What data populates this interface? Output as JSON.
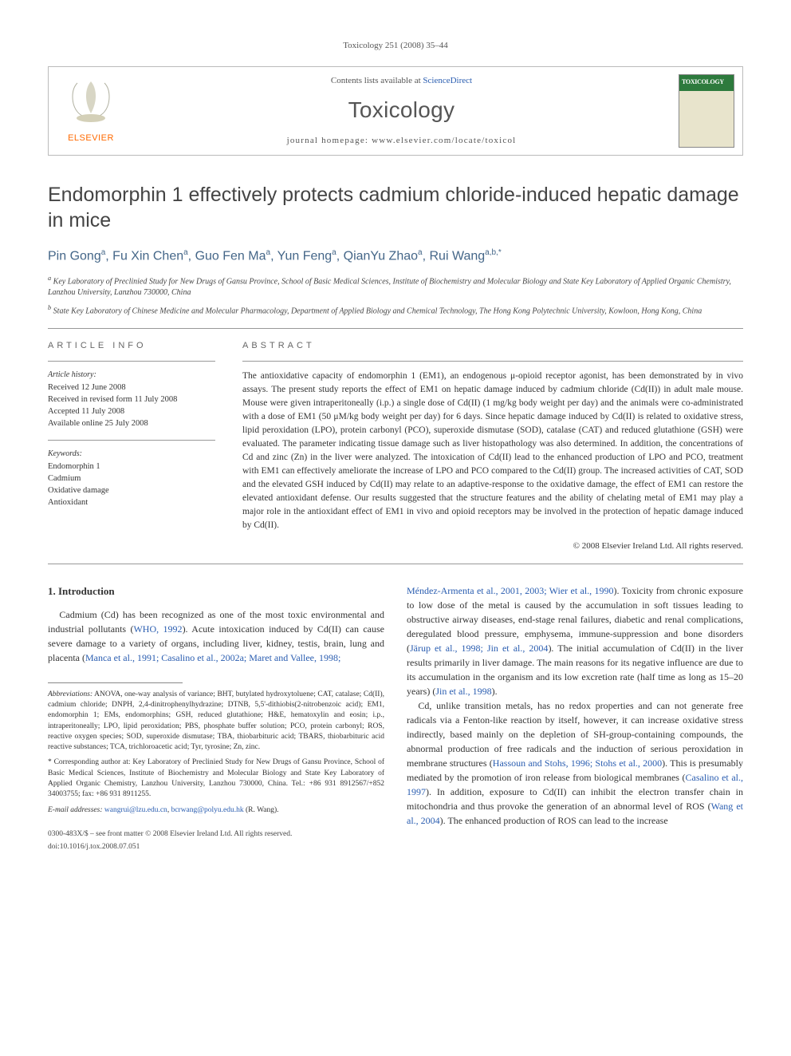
{
  "citation": "Toxicology 251 (2008) 35–44",
  "header": {
    "contents_prefix": "Contents lists available at ",
    "contents_link": "ScienceDirect",
    "journal": "Toxicology",
    "homepage_label": "journal homepage: ",
    "homepage_url": "www.elsevier.com/locate/toxicol",
    "cover_label": "TOXICOLOGY",
    "publisher": "ELSEVIER"
  },
  "title": "Endomorphin 1 effectively protects cadmium chloride-induced hepatic damage in mice",
  "authors_html": "Pin Gong<sup>a</sup>, Fu Xin Chen<sup>a</sup>, Guo Fen Ma<sup>a</sup>, Yun Feng<sup>a</sup>, QianYu Zhao<sup>a</sup>, Rui Wang<sup>a,b,*</sup>",
  "affiliations": {
    "a": "Key Laboratory of Preclinied Study for New Drugs of Gansu Province, School of Basic Medical Sciences, Institute of Biochemistry and Molecular Biology and State Key Laboratory of Applied Organic Chemistry, Lanzhou University, Lanzhou 730000, China",
    "b": "State Key Laboratory of Chinese Medicine and Molecular Pharmacology, Department of Applied Biology and Chemical Technology, The Hong Kong Polytechnic University, Kowloon, Hong Kong, China"
  },
  "article_info": {
    "heading": "ARTICLE INFO",
    "history_label": "Article history:",
    "history": [
      "Received 12 June 2008",
      "Received in revised form 11 July 2008",
      "Accepted 11 July 2008",
      "Available online 25 July 2008"
    ],
    "keywords_label": "Keywords:",
    "keywords": [
      "Endomorphin 1",
      "Cadmium",
      "Oxidative damage",
      "Antioxidant"
    ]
  },
  "abstract": {
    "heading": "ABSTRACT",
    "text": "The antioxidative capacity of endomorphin 1 (EM1), an endogenous μ-opioid receptor agonist, has been demonstrated by in vivo assays. The present study reports the effect of EM1 on hepatic damage induced by cadmium chloride (Cd(II)) in adult male mouse. Mouse were given intraperitoneally (i.p.) a single dose of Cd(II) (1 mg/kg body weight per day) and the animals were co-administrated with a dose of EM1 (50 μM/kg body weight per day) for 6 days. Since hepatic damage induced by Cd(II) is related to oxidative stress, lipid peroxidation (LPO), protein carbonyl (PCO), superoxide dismutase (SOD), catalase (CAT) and reduced glutathione (GSH) were evaluated. The parameter indicating tissue damage such as liver histopathology was also determined. In addition, the concentrations of Cd and zinc (Zn) in the liver were analyzed. The intoxication of Cd(II) lead to the enhanced production of LPO and PCO, treatment with EM1 can effectively ameliorate the increase of LPO and PCO compared to the Cd(II) group. The increased activities of CAT, SOD and the elevated GSH induced by Cd(II) may relate to an adaptive-response to the oxidative damage, the effect of EM1 can restore the elevated antioxidant defense. Our results suggested that the structure features and the ability of chelating metal of EM1 may play a major role in the antioxidant effect of EM1 in vivo and opioid receptors may be involved in the protection of hepatic damage induced by Cd(II).",
    "copyright": "© 2008 Elsevier Ireland Ltd. All rights reserved."
  },
  "intro": {
    "heading": "1. Introduction",
    "p1_pre": "Cadmium (Cd) has been recognized as one of the most toxic environmental and industrial pollutants (",
    "p1_ref1": "WHO, 1992",
    "p1_mid": "). Acute intoxication induced by Cd(II) can cause severe damage to a variety of organs, including liver, kidney, testis, brain, lung and placenta (",
    "p1_ref2": "Manca et al., 1991; Casalino et al., 2002a; Maret and Vallee, 1998;",
    "col2_ref1": "Méndez-Armenta et al., 2001, 2003; Wier et al., 1990",
    "col2_a": "). Toxicity from chronic exposure to low dose of the metal is caused by the accumulation in soft tissues leading to obstructive airway diseases, end-stage renal failures, diabetic and renal complications, deregulated blood pressure, emphysema, immune-suppression and bone disorders (",
    "col2_ref2": "Järup et al., 1998; Jin et al., 2004",
    "col2_b": "). The initial accumulation of Cd(II) in the liver results primarily in liver damage. The main reasons for its negative influence are due to its accumulation in the organism and its low excretion rate (half time as long as 15–20 years) (",
    "col2_ref3": "Jin et al., 1998",
    "col2_c": ").",
    "p2_a": "Cd, unlike transition metals, has no redox properties and can not generate free radicals via a Fenton-like reaction by itself, however, it can increase oxidative stress indirectly, based mainly on the depletion of SH-group-containing compounds, the abnormal production of free radicals and the induction of serious peroxidation in membrane structures (",
    "p2_ref1": "Hassoun and Stohs, 1996; Stohs et al., 2000",
    "p2_b": "). This is presumably mediated by the promotion of iron release from biological membranes (",
    "p2_ref2": "Casalino et al., 1997",
    "p2_c": "). In addition, exposure to Cd(II) can inhibit the electron transfer chain in mitochondria and thus provoke the generation of an abnormal level of ROS (",
    "p2_ref3": "Wang et al., 2004",
    "p2_d": "). The enhanced production of ROS can lead to the increase"
  },
  "footnotes": {
    "abbrev_label": "Abbreviations:",
    "abbrev": " ANOVA, one-way analysis of variance; BHT, butylated hydroxytoluene; CAT, catalase; Cd(II), cadmium chloride; DNPH, 2,4-dinitrophenylhydrazine; DTNB, 5,5'-dithiobis(2-nitrobenzoic acid); EM1, endomorphin 1; EMs, endomorphins; GSH, reduced glutathione; H&E, hematoxylin and eosin; i.p., intraperitoneally; LPO, lipid peroxidation; PBS, phosphate buffer solution; PCO, protein carbonyl; ROS, reactive oxygen species; SOD, superoxide dismutase; TBA, thiobarbituric acid; TBARS, thiobarbituric acid reactive substances; TCA, trichloroacetic acid; Tyr, tyrosine; Zn, zinc.",
    "corr": "* Corresponding author at: Key Laboratory of Preclinied Study for New Drugs of Gansu Province, School of Basic Medical Sciences, Institute of Biochemistry and Molecular Biology and State Key Laboratory of Applied Organic Chemistry, Lanzhou University, Lanzhou 730000, China. Tel.: +86 931 8912567/+852 34003755; fax: +86 931 8911255.",
    "email_label": "E-mail addresses:",
    "email1": "wangrui@lzu.edu.cn",
    "email2": "bcrwang@polyu.edu.hk",
    "email_tail": " (R. Wang)."
  },
  "footer": {
    "line1": "0300-483X/$ – see front matter © 2008 Elsevier Ireland Ltd. All rights reserved.",
    "line2": "doi:10.1016/j.tox.2008.07.051"
  },
  "colors": {
    "link": "#2a5db0",
    "text": "#333333",
    "muted": "#555555",
    "border": "#bbbbbb",
    "cover_green": "#2d7a3d",
    "elsevier_orange": "#ff6a00"
  }
}
